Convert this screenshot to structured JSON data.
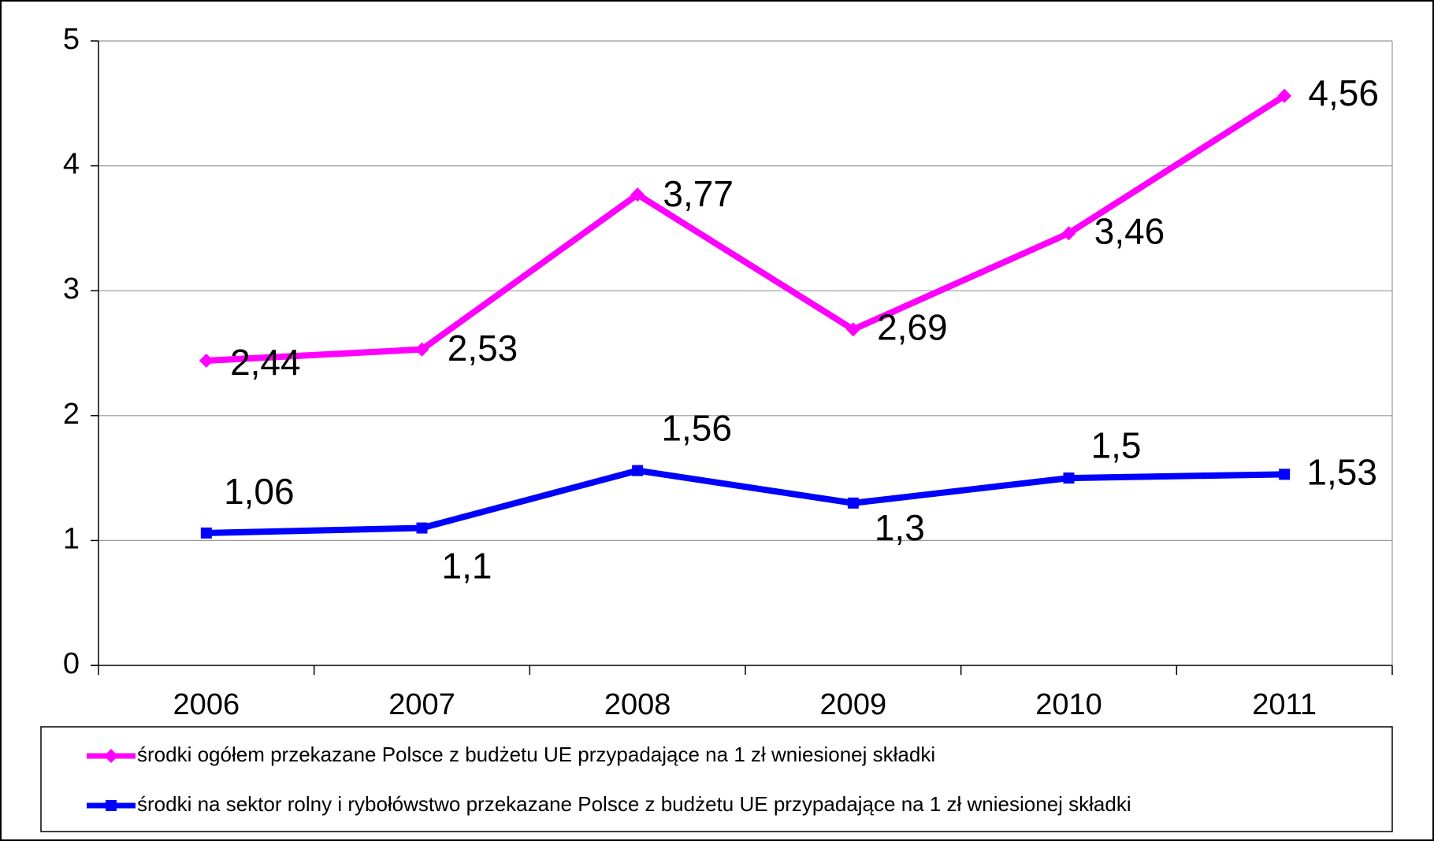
{
  "chart_data": {
    "type": "line",
    "categories": [
      "2006",
      "2007",
      "2008",
      "2009",
      "2010",
      "2011"
    ],
    "series": [
      {
        "name": "środki ogółem przekazane Polsce z budżetu UE przypadające na 1 zł wniesionej składki",
        "color": "#ff00ff",
        "marker": "diamond",
        "values": [
          2.44,
          2.53,
          3.77,
          2.69,
          3.46,
          4.56
        ],
        "value_labels": [
          "2,44",
          "2,53",
          "3,77",
          "2,69",
          "3,46",
          "4,56"
        ]
      },
      {
        "name": "środki na sektor rolny i rybołówstwo przekazane Polsce z budżetu UE przypadające na 1 zł wniesionej składki",
        "color": "#0000ff",
        "marker": "square",
        "values": [
          1.06,
          1.1,
          1.56,
          1.3,
          1.5,
          1.53
        ],
        "value_labels": [
          "1,06",
          "1,1",
          "1,56",
          "1,3",
          "1,5",
          "1,53"
        ]
      }
    ],
    "ylim": [
      0,
      5
    ],
    "yticks": [
      0,
      1,
      2,
      3,
      4,
      5
    ],
    "grid": true,
    "legend": "bottom"
  }
}
